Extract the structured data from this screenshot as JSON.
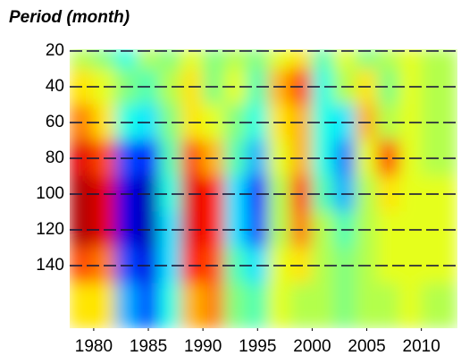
{
  "chart_data": {
    "type": "heatmap",
    "title": "Period (month)",
    "x_edges": [
      1977.8,
      1980,
      1982,
      1984,
      1986,
      1988,
      1990,
      1992,
      1994,
      1996,
      1998,
      2000,
      2002,
      2004,
      2006,
      2008,
      2010,
      2013.3
    ],
    "y_edges": [
      19,
      30,
      50,
      70,
      90,
      110,
      130,
      150,
      175
    ],
    "z": [
      [
        0.1,
        0,
        -0.2,
        0.1,
        0,
        0.2,
        0,
        0.1,
        0,
        0.2,
        0.3,
        -0.1,
        0.2,
        0,
        0.1,
        0.2,
        0.1
      ],
      [
        0.3,
        0.2,
        0,
        -0.1,
        0.1,
        0.3,
        0,
        0.2,
        -0.1,
        0.4,
        0.6,
        -0.2,
        0.1,
        0.3,
        0,
        0.2,
        0.1
      ],
      [
        0.5,
        0.3,
        -0.2,
        -0.3,
        0,
        0.3,
        0.2,
        0,
        -0.2,
        0.3,
        0.4,
        -0.2,
        -0.3,
        0.4,
        0.1,
        0.2,
        0.1
      ],
      [
        0.8,
        0.6,
        -0.6,
        -0.7,
        -0.1,
        0.6,
        0.4,
        -0.1,
        -0.4,
        0.2,
        0.4,
        -0.2,
        -0.5,
        0.2,
        0.6,
        0.2,
        0.1
      ],
      [
        0.9,
        0.8,
        -0.8,
        -0.9,
        -0.2,
        0.8,
        0.7,
        -0.3,
        -0.7,
        0.1,
        0.6,
        -0.1,
        -0.4,
        0.1,
        0.3,
        0.2,
        0.2
      ],
      [
        0.9,
        0.8,
        -0.8,
        -0.9,
        -0.3,
        0.8,
        0.7,
        -0.3,
        -0.6,
        0.1,
        0.5,
        0.1,
        -0.1,
        0.1,
        0.2,
        0.2,
        0.2
      ],
      [
        0.6,
        0.5,
        -0.6,
        -0.8,
        -0.3,
        0.7,
        0.6,
        -0.1,
        -0.3,
        0.2,
        0.3,
        0.1,
        0,
        0.1,
        0.2,
        0.2,
        0.2
      ],
      [
        0.3,
        0.3,
        -0.4,
        -0.6,
        -0.2,
        0.4,
        0.5,
        0,
        -0.1,
        0.2,
        0.1,
        0.1,
        0,
        0.1,
        0.1,
        0.2,
        0.1
      ]
    ],
    "zlim": [
      -1,
      1
    ],
    "colormap": "jet",
    "xlim": [
      1977.8,
      2013.3
    ],
    "xticks": [
      1980,
      1985,
      1990,
      1995,
      2000,
      2005,
      2010
    ],
    "ylim": [
      19,
      175
    ],
    "y_inverted": true,
    "yticks": [
      20,
      40,
      60,
      80,
      100,
      120,
      140
    ],
    "grid": true
  }
}
